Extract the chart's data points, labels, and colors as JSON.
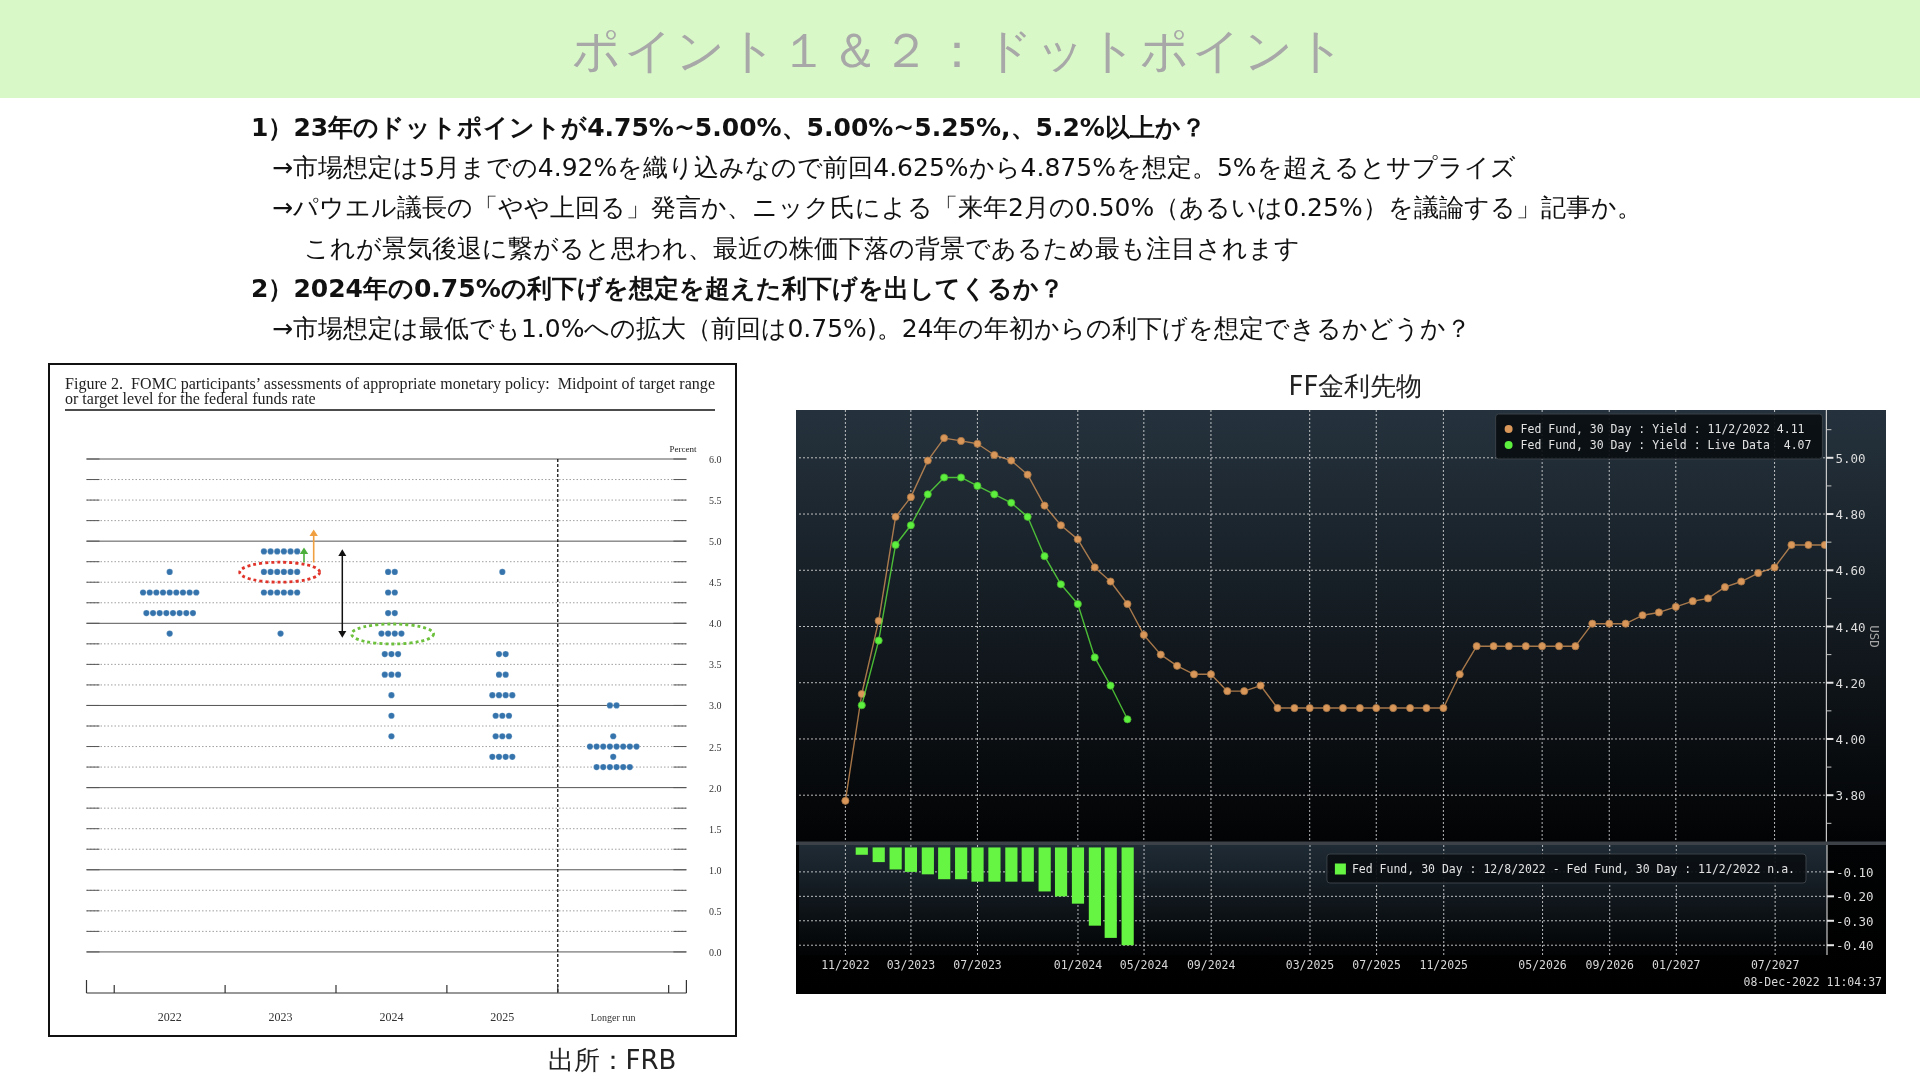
{
  "chart_data": [
    {
      "type": "other",
      "title": "ポイント１＆２：ドットポイント",
      "annotations": [
        "1）23年のドットポイントが4.75%~5.00%、5.00%~5.25%,、5.2%以上か？",
        "→市場想定は5月までの4.92%を織り込みなので前回4.625%から4.875%を想定。5%を超えるとサプライズ",
        "→パウエル議長の「やや上回る」発言か、ニック氏による「来年2月の0.50%（あるいは0.25%）を議論する」記事か。",
        "これが景気後退に繋がると思われ、最近の株価下落の背景であるため最も注目されます",
        "2）2024年の0.75%の利下げを想定を超えた利下げを出してくるか？",
        "→市場想定は最低でも1.0%への拡大（前回は0.75%)。24年の年初からの利下げを想定できるかどうか？"
      ]
    },
    {
      "type": "scatter",
      "title": "Figure 2.  FOMC participants’ assessments of appropriate monetary policy:  Midpoint of target range or target level for the federal funds rate",
      "ylabel": "Percent",
      "series": [
        {
          "color": "#3473ac",
          "x": [
            2022,
            2021.76,
            2021.82,
            2021.88,
            2021.94,
            2022,
            2022.06,
            2022.12,
            2022.18,
            2022.24,
            2021.79,
            2021.85,
            2021.91,
            2021.97,
            2022.03,
            2022.09,
            2022.15,
            2022.21,
            2022,
            2022.85,
            2022.91,
            2022.97,
            2023.03,
            2023.09,
            2023.15,
            2022.85,
            2022.91,
            2022.97,
            2023.03,
            2023.09,
            2023.15,
            2022.85,
            2022.91,
            2022.97,
            2023.03,
            2023.09,
            2023.15,
            2023,
            2023.97,
            2024.03,
            2023.97,
            2024.03,
            2023.97,
            2024.03,
            2023.91,
            2023.97,
            2024.03,
            2024.09,
            2023.94,
            2024,
            2024.06,
            2023.94,
            2024,
            2024.06,
            2024,
            2024,
            2024,
            2025,
            2024.97,
            2025.03,
            2024.97,
            2025.03,
            2024.91,
            2024.97,
            2025.03,
            2025.09,
            2024.94,
            2025,
            2025.06,
            2024.94,
            2025,
            2025.06,
            2024.91,
            2024.97,
            2025.03,
            2025.09,
            2025.97,
            2026.03,
            2026,
            2025.79,
            2025.85,
            2025.91,
            2025.97,
            2026.03,
            2026.09,
            2026.15,
            2026.21,
            2026,
            2025.85,
            2025.91,
            2025.97,
            2026.03,
            2026.09,
            2026.15
          ],
          "values": [
            4.625,
            4.375,
            4.375,
            4.375,
            4.375,
            4.375,
            4.375,
            4.375,
            4.375,
            4.375,
            4.125,
            4.125,
            4.125,
            4.125,
            4.125,
            4.125,
            4.125,
            4.125,
            3.875,
            4.875,
            4.875,
            4.875,
            4.875,
            4.875,
            4.875,
            4.625,
            4.625,
            4.625,
            4.625,
            4.625,
            4.625,
            4.375,
            4.375,
            4.375,
            4.375,
            4.375,
            4.375,
            3.875,
            4.625,
            4.625,
            4.375,
            4.375,
            4.125,
            4.125,
            3.875,
            3.875,
            3.875,
            3.875,
            3.625,
            3.625,
            3.625,
            3.375,
            3.375,
            3.375,
            3.125,
            2.875,
            2.625,
            4.625,
            3.625,
            3.625,
            3.375,
            3.375,
            3.125,
            3.125,
            3.125,
            3.125,
            2.875,
            2.875,
            2.875,
            2.625,
            2.625,
            2.625,
            2.375,
            2.375,
            2.375,
            2.375,
            3,
            3,
            2.625,
            2.5,
            2.5,
            2.5,
            2.5,
            2.5,
            2.5,
            2.5,
            2.5,
            2.375,
            2.25,
            2.25,
            2.25,
            2.25,
            2.25,
            2.25
          ]
        }
      ],
      "xlim": [
        2021.25,
        2026.66
      ],
      "xticks": [
        {
          "value": 2021.5,
          "label": null
        },
        2022,
        {
          "value": 2022.5,
          "label": null
        },
        2023,
        {
          "value": 2023.5,
          "label": null
        },
        2024,
        {
          "value": 2024.5,
          "label": null
        },
        2025,
        {
          "value": 2025.5,
          "label": null
        },
        {
          "value": 2026,
          "label": "Longer run"
        },
        {
          "value": 2026.5,
          "label": null
        }
      ],
      "ylim": [
        -0.5,
        6
      ],
      "yticks": [
        {
          "value": 0,
          "label": "0.0"
        },
        {
          "value": 0.25,
          "label": null
        },
        0.5,
        {
          "value": 0.75,
          "label": null
        },
        {
          "value": 1,
          "label": "1.0"
        },
        {
          "value": 1.25,
          "label": null
        },
        1.5,
        {
          "value": 1.75,
          "label": null
        },
        {
          "value": 2,
          "label": "2.0"
        },
        {
          "value": 2.25,
          "label": null
        },
        2.5,
        {
          "value": 2.75,
          "label": null
        },
        {
          "value": 3,
          "label": "3.0"
        },
        {
          "value": 3.25,
          "label": null
        },
        3.5,
        {
          "value": 3.75,
          "label": null
        },
        {
          "value": 4,
          "label": "4.0"
        },
        {
          "value": 4.25,
          "label": null
        },
        4.5,
        {
          "value": 4.75,
          "label": null
        },
        {
          "value": 5,
          "label": "5.0"
        },
        {
          "value": 5.25,
          "label": null
        },
        5.5,
        {
          "value": 5.75,
          "label": null
        },
        {
          "value": 6,
          "label": "6.0"
        }
      ],
      "ref_lines": [
        {
          "axis": "x",
          "value": 2025.5,
          "color": "#111111",
          "line_style": "dashed"
        }
      ],
      "grid": "y",
      "marker": "circle",
      "annotations": [
        "出所：FRB"
      ]
    },
    {
      "type": "line",
      "title": "FF金利先物",
      "ylabel": "USD",
      "series": [
        {
          "name": "Fed Fund, 30 Day : Yield : 11/2/2022 4.11",
          "color": "#d9985a",
          "x": [
            "2022-11",
            "2022-12",
            "2023-01",
            "2023-02",
            "2023-03",
            "2023-04",
            "2023-05",
            "2023-06",
            "2023-07",
            "2023-08",
            "2023-09",
            "2023-10",
            "2023-11",
            "2023-12",
            "2024-01",
            "2024-02",
            "2024-03",
            "2024-04",
            "2024-05",
            "2024-06",
            "2024-07",
            "2024-08",
            "2024-09",
            "2024-10",
            "2024-11",
            "2024-12",
            "2025-01",
            "2025-02",
            "2025-03",
            "2025-04",
            "2025-05",
            "2025-06",
            "2025-07",
            "2025-08",
            "2025-09",
            "2025-10",
            "2025-11",
            "2025-12",
            "2026-01",
            "2026-02",
            "2026-03",
            "2026-04",
            "2026-05",
            "2026-06",
            "2026-07",
            "2026-08",
            "2026-09",
            "2026-10",
            "2026-11",
            "2026-12",
            "2027-01",
            "2027-02",
            "2027-03",
            "2027-04",
            "2027-05",
            "2027-06",
            "2027-07",
            "2027-08",
            "2027-09",
            "2027-10"
          ],
          "values": [
            3.78,
            4.16,
            4.42,
            4.79,
            4.86,
            4.99,
            5.07,
            5.06,
            5.05,
            5.01,
            4.99,
            4.94,
            4.83,
            4.76,
            4.71,
            4.61,
            4.56,
            4.48,
            4.37,
            4.3,
            4.26,
            4.23,
            4.23,
            4.17,
            4.17,
            4.19,
            4.11,
            4.11,
            4.11,
            4.11,
            4.11,
            4.11,
            4.11,
            4.11,
            4.11,
            4.11,
            4.11,
            4.23,
            4.33,
            4.33,
            4.33,
            4.33,
            4.33,
            4.33,
            4.33,
            4.41,
            4.41,
            4.41,
            4.44,
            4.45,
            4.47,
            4.49,
            4.5,
            4.54,
            4.56,
            4.59,
            4.61,
            4.69,
            4.69,
            4.69
          ]
        },
        {
          "name": "Fed Fund, 30 Day : Yield : Live Data  4.07",
          "color": "#5ef03e",
          "x": [
            "2022-12",
            "2023-01",
            "2023-02",
            "2023-03",
            "2023-04",
            "2023-05",
            "2023-06",
            "2023-07",
            "2023-08",
            "2023-09",
            "2023-10",
            "2023-11",
            "2023-12",
            "2024-01",
            "2024-02",
            "2024-03",
            "2024-04"
          ],
          "values": [
            4.12,
            4.35,
            4.69,
            4.76,
            4.87,
            4.93,
            4.93,
            4.9,
            4.87,
            4.84,
            4.79,
            4.65,
            4.55,
            4.48,
            4.29,
            4.19,
            4.07
          ]
        }
      ],
      "xlim": [
        "2022-08-08",
        "2027-10-04"
      ],
      "xticks": [
        "2022-11",
        "2023-03",
        "2023-07",
        "2024-01",
        "2024-05",
        "2024-09",
        "2025-03",
        "2025-07",
        "2025-11",
        "2026-05",
        "2026-09",
        "2027-01",
        "2027-07"
      ],
      "ylim": [
        3.63,
        5.17
      ],
      "yticks": [
        {
          "value": 3.7,
          "label": null
        },
        {
          "value": 3.8,
          "label": "3.80"
        },
        {
          "value": 3.9,
          "label": null
        },
        {
          "value": 4,
          "label": "4.00"
        },
        {
          "value": 4.1,
          "label": null
        },
        {
          "value": 4.2,
          "label": "4.20"
        },
        {
          "value": 4.3,
          "label": null
        },
        {
          "value": 4.4,
          "label": "4.40"
        },
        {
          "value": 4.5,
          "label": null
        },
        {
          "value": 4.6,
          "label": "4.60"
        },
        {
          "value": 4.7,
          "label": null
        },
        {
          "value": 4.8,
          "label": "4.80"
        },
        {
          "value": 4.9,
          "label": null
        },
        {
          "value": 5,
          "label": "5.00"
        },
        {
          "value": 5.1,
          "label": null
        }
      ],
      "grid": true,
      "legend": "top right",
      "marker": "circle",
      "tick_labels": "y"
    },
    {
      "type": "bar",
      "series": [
        {
          "name": "Fed Fund, 30 Day : 12/8/2022 - Fed Fund, 30 Day : 11/2/2022 n.a.",
          "color": "#66f542",
          "x": [
            "2022-12",
            "2023-01",
            "2023-02",
            "2023-03",
            "2023-04",
            "2023-05",
            "2023-06",
            "2023-07",
            "2023-08",
            "2023-09",
            "2023-10",
            "2023-11",
            "2023-12",
            "2024-01",
            "2024-02",
            "2024-03",
            "2024-04"
          ],
          "values": [
            -0.03,
            -0.06,
            -0.09,
            -0.1,
            -0.11,
            -0.13,
            -0.13,
            -0.14,
            -0.14,
            -0.14,
            -0.14,
            -0.18,
            -0.2,
            -0.23,
            -0.32,
            -0.37,
            -0.4
          ]
        }
      ],
      "xlim": [
        "2022-08-08",
        "2027-10-04"
      ],
      "xticks": [
        {
          "value": "2022-11",
          "label": "11/2022"
        },
        {
          "value": "2023-03",
          "label": "03/2023"
        },
        {
          "value": "2023-07",
          "label": "07/2023"
        },
        {
          "value": "2024-01",
          "label": "01/2024"
        },
        {
          "value": "2024-05",
          "label": "05/2024"
        },
        {
          "value": "2024-09",
          "label": "09/2024"
        },
        {
          "value": "2025-03",
          "label": "03/2025"
        },
        {
          "value": "2025-07",
          "label": "07/2025"
        },
        {
          "value": "2025-11",
          "label": "11/2025"
        },
        {
          "value": "2026-05",
          "label": "05/2026"
        },
        {
          "value": "2026-09",
          "label": "09/2026"
        },
        {
          "value": "2027-01",
          "label": "01/2027"
        },
        {
          "value": "2027-07",
          "label": "07/2027"
        }
      ],
      "ylim": [
        -0.44,
        0.01
      ],
      "yticks": [
        {
          "value": -0.1,
          "label": "-0.10"
        },
        {
          "value": -0.2,
          "label": "-0.20"
        },
        {
          "value": -0.3,
          "label": "-0.30"
        },
        {
          "value": -0.4,
          "label": "-0.40"
        }
      ],
      "grid": true,
      "legend": "top right",
      "annotations": [
        "08-Dec-2022 11:04:37"
      ]
    }
  ]
}
